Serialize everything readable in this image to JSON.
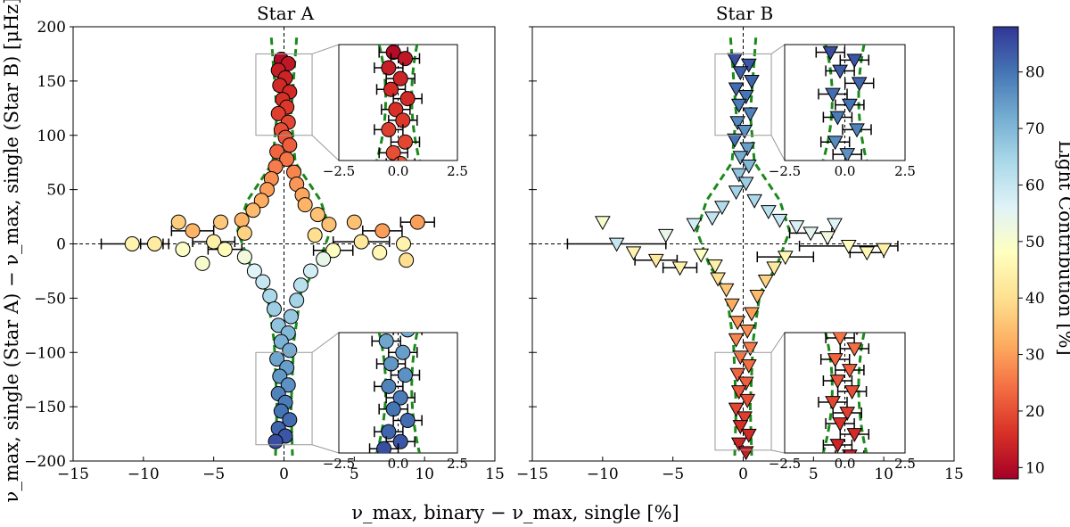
{
  "chart_data": {
    "type": "scatter",
    "xlabel": "ν_max, binary − ν_max, single [%]",
    "ylabel": "ν_max, single (Star A) − ν_max, single (Star B) [μHz]",
    "xlim": [
      -15,
      15
    ],
    "ylim": [
      -200,
      200
    ],
    "x_ticks": [
      -15,
      -10,
      -5,
      0,
      5,
      10,
      15
    ],
    "x_tick_labels": [
      "−15",
      "−10",
      "−5",
      "0",
      "5",
      "10",
      "15"
    ],
    "y_ticks": [
      200,
      150,
      100,
      50,
      0,
      -50,
      -100,
      -150,
      -200
    ],
    "y_tick_labels": [
      "200",
      "150",
      "100",
      "50",
      "0",
      "−50",
      "−100",
      "−150",
      "−200"
    ],
    "inset_x_ticks": [
      -2.5,
      0.0,
      2.5
    ],
    "inset_x_tick_labels": [
      "−2.5",
      "0.0",
      "2.5"
    ],
    "colorbar": {
      "label": "Light Contribution [%]",
      "range": [
        8,
        88
      ],
      "ticks": [
        10,
        20,
        30,
        40,
        50,
        60,
        70,
        80
      ],
      "tick_labels": [
        "10",
        "20",
        "30",
        "40",
        "50",
        "60",
        "70",
        "80"
      ],
      "colormap": [
        "#a50026",
        "#d73027",
        "#f46d43",
        "#fdae61",
        "#fee090",
        "#ffffbf",
        "#e0f3f8",
        "#abd9e9",
        "#74add1",
        "#4575b4",
        "#313695"
      ]
    },
    "panels": [
      {
        "title": "Star A",
        "marker": "circle",
        "trend": "light contribution increases from ~10% at Δν_max = +170 μHz to ~85% at Δν_max = −170 μHz",
        "points": [
          {
            "x": -0.2,
            "y": 170,
            "c": 10
          },
          {
            "x": 0.3,
            "y": 166,
            "c": 12
          },
          {
            "x": -0.4,
            "y": 160,
            "c": 13
          },
          {
            "x": 0.1,
            "y": 153,
            "c": 14
          },
          {
            "x": -0.3,
            "y": 146,
            "c": 15
          },
          {
            "x": 0.4,
            "y": 140,
            "c": 15
          },
          {
            "x": -0.1,
            "y": 133,
            "c": 16
          },
          {
            "x": 0.2,
            "y": 126,
            "c": 17
          },
          {
            "x": -0.4,
            "y": 120,
            "c": 18
          },
          {
            "x": 0.3,
            "y": 112,
            "c": 19
          },
          {
            "x": -0.2,
            "y": 105,
            "c": 20
          },
          {
            "x": 0.1,
            "y": 98,
            "c": 21
          },
          {
            "x": 0.4,
            "y": 91,
            "c": 22
          },
          {
            "x": -0.5,
            "y": 85,
            "c": 23
          },
          {
            "x": 0.2,
            "y": 78,
            "c": 25
          },
          {
            "x": -0.6,
            "y": 71,
            "c": 26
          },
          {
            "x": 0.7,
            "y": 66,
            "c": 27
          },
          {
            "x": -0.9,
            "y": 60,
            "c": 28
          },
          {
            "x": 0.9,
            "y": 55,
            "c": 29
          },
          {
            "x": -1.2,
            "y": 50,
            "c": 30
          },
          {
            "x": 1.3,
            "y": 45,
            "c": 31
          },
          {
            "x": -1.6,
            "y": 40,
            "c": 32
          },
          {
            "x": 1.5,
            "y": 36,
            "c": 33
          },
          {
            "x": -2.2,
            "y": 31,
            "c": 34
          },
          {
            "x": 2.4,
            "y": 27,
            "c": 35
          },
          {
            "x": -3.0,
            "y": 22,
            "c": 33
          },
          {
            "x": 3.2,
            "y": 18,
            "c": 35
          },
          {
            "x": -4.5,
            "y": 20,
            "c": 36
          },
          {
            "x": -7.5,
            "y": 20,
            "c": 37
          },
          {
            "x": 5.0,
            "y": 20,
            "c": 35
          },
          {
            "x": 9.5,
            "y": 20,
            "c": 30
          },
          {
            "x": -6.5,
            "y": 12,
            "c": 33
          },
          {
            "x": 7.0,
            "y": 12,
            "c": 30
          },
          {
            "x": -2.8,
            "y": 10,
            "c": 38
          },
          {
            "x": 2.2,
            "y": 8,
            "c": 40
          },
          {
            "x": -10.8,
            "y": 0,
            "c": 45
          },
          {
            "x": -9.2,
            "y": 0,
            "c": 43
          },
          {
            "x": -5.0,
            "y": 2,
            "c": 44
          },
          {
            "x": 5.5,
            "y": 2,
            "c": 42
          },
          {
            "x": 8.5,
            "y": 0,
            "c": 45
          },
          {
            "x": 6.8,
            "y": -8,
            "c": 46
          },
          {
            "x": -4.2,
            "y": -5,
            "c": 47
          },
          {
            "x": 3.5,
            "y": -6,
            "c": 48
          },
          {
            "x": -7.2,
            "y": -5,
            "c": 49
          },
          {
            "x": 8.7,
            "y": -15,
            "c": 40
          },
          {
            "x": -5.8,
            "y": -18,
            "c": 50
          },
          {
            "x": -2.8,
            "y": -12,
            "c": 52
          },
          {
            "x": 2.8,
            "y": -14,
            "c": 54
          },
          {
            "x": -2.1,
            "y": -25,
            "c": 56
          },
          {
            "x": 1.9,
            "y": -25,
            "c": 58
          },
          {
            "x": -1.5,
            "y": -35,
            "c": 60
          },
          {
            "x": 1.2,
            "y": -38,
            "c": 62
          },
          {
            "x": -1.0,
            "y": -48,
            "c": 64
          },
          {
            "x": 0.9,
            "y": -52,
            "c": 65
          },
          {
            "x": -0.7,
            "y": -60,
            "c": 66
          },
          {
            "x": 0.5,
            "y": -67,
            "c": 67
          },
          {
            "x": -0.4,
            "y": -75,
            "c": 68
          },
          {
            "x": 0.3,
            "y": -82,
            "c": 70
          },
          {
            "x": -0.2,
            "y": -90,
            "c": 71
          },
          {
            "x": 0.4,
            "y": -98,
            "c": 72
          },
          {
            "x": -0.5,
            "y": -106,
            "c": 73
          },
          {
            "x": 0.2,
            "y": -114,
            "c": 74
          },
          {
            "x": -0.3,
            "y": -122,
            "c": 75
          },
          {
            "x": 0.3,
            "y": -130,
            "c": 76
          },
          {
            "x": -0.4,
            "y": -138,
            "c": 78
          },
          {
            "x": 0.1,
            "y": -146,
            "c": 79
          },
          {
            "x": -0.2,
            "y": -154,
            "c": 80
          },
          {
            "x": 0.4,
            "y": -162,
            "c": 81
          },
          {
            "x": -0.4,
            "y": -170,
            "c": 82
          },
          {
            "x": 0.1,
            "y": -177,
            "c": 84
          },
          {
            "x": -0.6,
            "y": -182,
            "c": 85
          }
        ],
        "error_bars": [
          {
            "x": -10.8,
            "y": 0,
            "xerr": 2.2
          },
          {
            "x": -9.2,
            "y": 0,
            "xerr": 1.0
          },
          {
            "x": -5.0,
            "y": 2,
            "xerr": 1.5
          },
          {
            "x": 5.5,
            "y": 2,
            "xerr": 2.0
          },
          {
            "x": 9.5,
            "y": 20,
            "xerr": 1.2
          },
          {
            "x": -6.5,
            "y": 12,
            "xerr": 1.5
          },
          {
            "x": 7.0,
            "y": 12,
            "xerr": 1.4
          },
          {
            "x": -4.2,
            "y": -5,
            "xerr": 1.2
          },
          {
            "x": 3.5,
            "y": -6,
            "xerr": 1.4
          }
        ]
      },
      {
        "title": "Star B",
        "marker": "triangle-down",
        "trend": "light contribution increases from ~12% at Δν_max = −190 μHz to ~85% at Δν_max = +170 μHz",
        "points": [
          {
            "x": -0.6,
            "y": 170,
            "c": 85
          },
          {
            "x": 0.4,
            "y": 165,
            "c": 84
          },
          {
            "x": -0.2,
            "y": 158,
            "c": 83
          },
          {
            "x": 0.6,
            "y": 150,
            "c": 82
          },
          {
            "x": -0.5,
            "y": 143,
            "c": 81
          },
          {
            "x": 0.2,
            "y": 136,
            "c": 80
          },
          {
            "x": -0.3,
            "y": 128,
            "c": 79
          },
          {
            "x": 0.5,
            "y": 120,
            "c": 78
          },
          {
            "x": -0.4,
            "y": 112,
            "c": 77
          },
          {
            "x": 0.1,
            "y": 104,
            "c": 76
          },
          {
            "x": -0.6,
            "y": 96,
            "c": 80
          },
          {
            "x": 0.3,
            "y": 88,
            "c": 74
          },
          {
            "x": -0.2,
            "y": 80,
            "c": 72
          },
          {
            "x": 0.4,
            "y": 72,
            "c": 70
          },
          {
            "x": -0.3,
            "y": 64,
            "c": 68
          },
          {
            "x": 0.2,
            "y": 56,
            "c": 66
          },
          {
            "x": -0.5,
            "y": 48,
            "c": 65
          },
          {
            "x": 0.8,
            "y": 40,
            "c": 64
          },
          {
            "x": -1.5,
            "y": 34,
            "c": 63
          },
          {
            "x": 1.8,
            "y": 30,
            "c": 62
          },
          {
            "x": -2.2,
            "y": 24,
            "c": 61
          },
          {
            "x": 2.6,
            "y": 22,
            "c": 60
          },
          {
            "x": -10.0,
            "y": 20,
            "c": 50
          },
          {
            "x": -3.5,
            "y": 18,
            "c": 58
          },
          {
            "x": 3.8,
            "y": 16,
            "c": 57
          },
          {
            "x": 6.5,
            "y": 18,
            "c": 56
          },
          {
            "x": 4.8,
            "y": 10,
            "c": 55
          },
          {
            "x": -5.5,
            "y": 8,
            "c": 54
          },
          {
            "x": -9.0,
            "y": 0,
            "c": 60
          },
          {
            "x": -7.8,
            "y": -8,
            "c": 45
          },
          {
            "x": -6.2,
            "y": -15,
            "c": 42
          },
          {
            "x": -4.5,
            "y": -22,
            "c": 44
          },
          {
            "x": 7.5,
            "y": -2,
            "c": 48
          },
          {
            "x": 8.8,
            "y": -8,
            "c": 46
          },
          {
            "x": 10.0,
            "y": -5,
            "c": 44
          },
          {
            "x": 6.0,
            "y": 6,
            "c": 52
          },
          {
            "x": -3.0,
            "y": -10,
            "c": 48
          },
          {
            "x": 3.0,
            "y": -12,
            "c": 46
          },
          {
            "x": -2.0,
            "y": -20,
            "c": 44
          },
          {
            "x": 2.2,
            "y": -22,
            "c": 42
          },
          {
            "x": -1.8,
            "y": -32,
            "c": 40
          },
          {
            "x": 1.6,
            "y": -34,
            "c": 38
          },
          {
            "x": -1.2,
            "y": -42,
            "c": 36
          },
          {
            "x": 1.0,
            "y": -48,
            "c": 34
          },
          {
            "x": -0.8,
            "y": -56,
            "c": 32
          },
          {
            "x": 0.6,
            "y": -64,
            "c": 30
          },
          {
            "x": -0.4,
            "y": -72,
            "c": 29
          },
          {
            "x": 0.3,
            "y": -80,
            "c": 28
          },
          {
            "x": -0.5,
            "y": -88,
            "c": 27
          },
          {
            "x": 0.5,
            "y": -96,
            "c": 26
          },
          {
            "x": -0.2,
            "y": -104,
            "c": 25
          },
          {
            "x": 0.4,
            "y": -112,
            "c": 24
          },
          {
            "x": -0.4,
            "y": -120,
            "c": 23
          },
          {
            "x": 0.2,
            "y": -128,
            "c": 22
          },
          {
            "x": -0.3,
            "y": -136,
            "c": 21
          },
          {
            "x": 0.3,
            "y": -144,
            "c": 20
          },
          {
            "x": -0.5,
            "y": -152,
            "c": 19
          },
          {
            "x": 0.1,
            "y": -160,
            "c": 18
          },
          {
            "x": -0.2,
            "y": -168,
            "c": 16
          },
          {
            "x": 0.4,
            "y": -176,
            "c": 15
          },
          {
            "x": -0.3,
            "y": -184,
            "c": 14
          },
          {
            "x": 0.2,
            "y": -192,
            "c": 13
          }
        ],
        "error_bars": [
          {
            "x": -9.0,
            "y": 0,
            "xerr": 3.5
          },
          {
            "x": 7.5,
            "y": -2,
            "xerr": 3.5
          },
          {
            "x": -6.2,
            "y": -15,
            "xerr": 1.5
          },
          {
            "x": 8.8,
            "y": -8,
            "xerr": 1.2
          },
          {
            "x": -4.5,
            "y": -22,
            "xerr": 1.2
          },
          {
            "x": 4.8,
            "y": 10,
            "xerr": 1.5
          },
          {
            "x": 3.0,
            "y": -12,
            "xerr": 2.0
          }
        ]
      }
    ]
  }
}
